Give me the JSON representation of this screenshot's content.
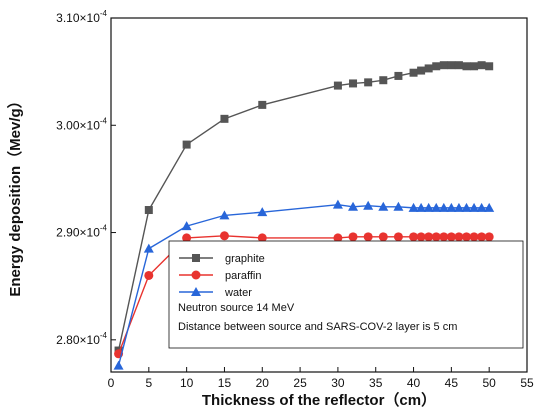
{
  "chart_data": {
    "type": "line",
    "xlabel": "Thickness of the reflector（cm）",
    "ylabel": "Energy deposition（Mev/g）",
    "xlim": [
      0,
      55
    ],
    "ylim": [
      2.77,
      3.1
    ],
    "x_ticks": [
      0,
      5,
      10,
      15,
      20,
      25,
      30,
      35,
      40,
      45,
      50,
      55
    ],
    "y_ticks": [
      {
        "value": 2.8,
        "mantissa": "2.80",
        "base": "×10",
        "exp": "-4"
      },
      {
        "value": 2.9,
        "mantissa": "2.90",
        "base": "×10",
        "exp": "-4"
      },
      {
        "value": 3.0,
        "mantissa": "3.00",
        "base": "×10",
        "exp": "-4"
      },
      {
        "value": 3.1,
        "mantissa": "3.10",
        "base": "×10",
        "exp": "-4"
      }
    ],
    "legend_placement": "bottom-right",
    "series": [
      {
        "name": "graphite",
        "color": "#555555",
        "marker": "square",
        "x": [
          1,
          5,
          10,
          15,
          20,
          30,
          32,
          34,
          36,
          38,
          40,
          41,
          42,
          43,
          44,
          45,
          46,
          47,
          48,
          49,
          50
        ],
        "y": [
          2.79,
          2.921,
          2.982,
          3.006,
          3.019,
          3.037,
          3.039,
          3.04,
          3.042,
          3.046,
          3.049,
          3.051,
          3.053,
          3.055,
          3.056,
          3.056,
          3.056,
          3.055,
          3.055,
          3.056,
          3.055
        ]
      },
      {
        "name": "paraffin",
        "color": "#e8332f",
        "marker": "circle",
        "x": [
          1,
          5,
          10,
          15,
          20,
          30,
          32,
          34,
          36,
          38,
          40,
          41,
          42,
          43,
          44,
          45,
          46,
          47,
          48,
          49,
          50
        ],
        "y": [
          2.787,
          2.86,
          2.895,
          2.897,
          2.895,
          2.895,
          2.896,
          2.896,
          2.896,
          2.896,
          2.896,
          2.896,
          2.896,
          2.896,
          2.896,
          2.896,
          2.896,
          2.896,
          2.896,
          2.896,
          2.896
        ]
      },
      {
        "name": "water",
        "color": "#2866d9",
        "marker": "triangle",
        "x": [
          1,
          5,
          10,
          15,
          20,
          30,
          32,
          34,
          36,
          38,
          40,
          41,
          42,
          43,
          44,
          45,
          46,
          47,
          48,
          49,
          50
        ],
        "y": [
          2.776,
          2.885,
          2.906,
          2.916,
          2.919,
          2.926,
          2.924,
          2.925,
          2.924,
          2.924,
          2.923,
          2.923,
          2.923,
          2.923,
          2.923,
          2.923,
          2.923,
          2.923,
          2.923,
          2.923,
          2.923
        ]
      }
    ],
    "annotations": [
      "Neutron source 14 MeV",
      "Distance between source and SARS-COV-2 layer is 5 cm"
    ]
  }
}
